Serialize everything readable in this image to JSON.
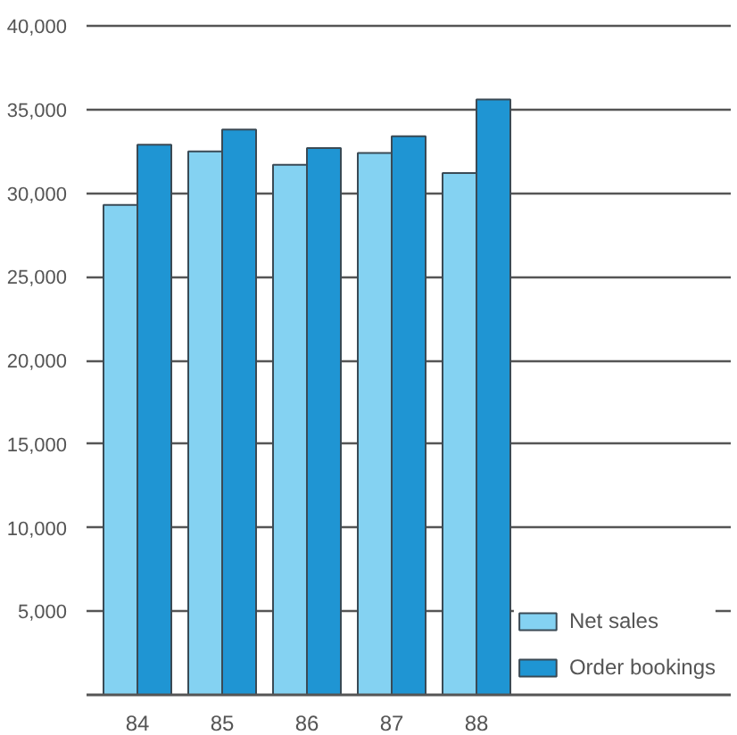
{
  "chart_data": {
    "type": "bar",
    "categories": [
      "84",
      "85",
      "86",
      "87",
      "88"
    ],
    "series": [
      {
        "name": "Net sales",
        "color": "#84d2f2",
        "values": [
          29300,
          32500,
          31700,
          32400,
          31200
        ]
      },
      {
        "name": "Order bookings",
        "color": "#1f95d3",
        "values": [
          32900,
          33800,
          32700,
          33400,
          35600
        ]
      }
    ],
    "ylim": [
      0,
      40000
    ],
    "yticks": [
      {
        "value": 5000,
        "label": "5,000"
      },
      {
        "value": 10000,
        "label": "10,000"
      },
      {
        "value": 15000,
        "label": "15,000"
      },
      {
        "value": 20000,
        "label": "20,000"
      },
      {
        "value": 25000,
        "label": "25,000"
      },
      {
        "value": 30000,
        "label": "30,000"
      },
      {
        "value": 35000,
        "label": "35,000"
      },
      {
        "value": 40000,
        "label": "40,000"
      }
    ],
    "grid": "y",
    "legend": "bottom right"
  }
}
